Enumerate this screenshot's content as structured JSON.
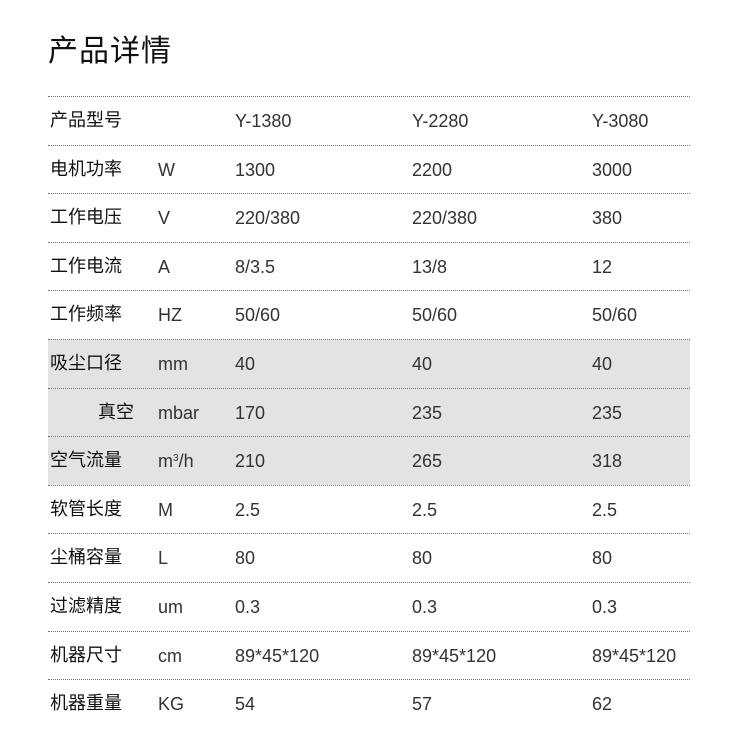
{
  "title": "产品详情",
  "rows": [
    {
      "label": "产品型号",
      "unit": "",
      "values": [
        "Y-1380",
        "Y-2280",
        "Y-3080"
      ],
      "highlight": false
    },
    {
      "label": "电机功率",
      "unit": "W",
      "values": [
        "1300",
        "2200",
        "3000"
      ],
      "highlight": false
    },
    {
      "label": "工作电压",
      "unit": "V",
      "values": [
        "220/380",
        "220/380",
        "380"
      ],
      "highlight": false
    },
    {
      "label": "工作电流",
      "unit": "A",
      "values": [
        "8/3.5",
        "13/8",
        "12"
      ],
      "highlight": false
    },
    {
      "label": "工作频率",
      "unit": "HZ",
      "values": [
        "50/60",
        "50/60",
        "50/60"
      ],
      "highlight": false
    },
    {
      "label": "吸尘口径",
      "unit": "mm",
      "values": [
        "40",
        "40",
        "40"
      ],
      "highlight": true
    },
    {
      "label": "真空",
      "unit": "mbar",
      "values": [
        "170",
        "235",
        "235"
      ],
      "highlight": true
    },
    {
      "label": "空气流量",
      "unit": "m³/h",
      "values": [
        "210",
        "265",
        "318"
      ],
      "highlight": true
    },
    {
      "label": "软管长度",
      "unit": "M",
      "values": [
        "2.5",
        "2.5",
        "2.5"
      ],
      "highlight": false
    },
    {
      "label": "尘桶容量",
      "unit": "L",
      "values": [
        "80",
        "80",
        "80"
      ],
      "highlight": false
    },
    {
      "label": "过滤精度",
      "unit": "um",
      "values": [
        "0.3",
        "0.3",
        "0.3"
      ],
      "highlight": false
    },
    {
      "label": "机器尺寸",
      "unit": "cm",
      "values": [
        "89*45*120",
        "89*45*120",
        "89*45*120"
      ],
      "highlight": false
    },
    {
      "label": "机器重量",
      "unit": "KG",
      "values": [
        "54",
        "57",
        "62"
      ],
      "highlight": false
    }
  ],
  "colors": {
    "highlight_bg": "#e3e3e3"
  }
}
